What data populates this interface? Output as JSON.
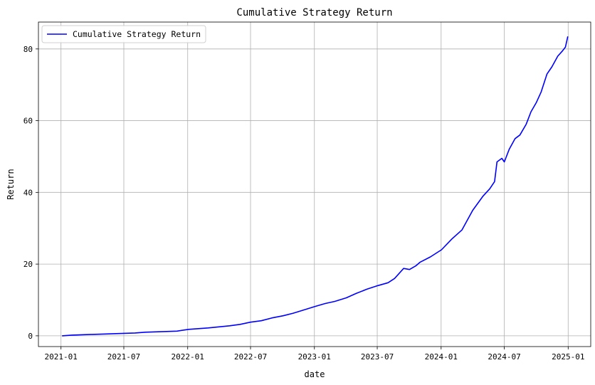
{
  "chart_data": {
    "type": "line",
    "title": "Cumulative Strategy Return",
    "xlabel": "date",
    "ylabel": "Return",
    "x_ticks": [
      "2021-01",
      "2021-07",
      "2022-01",
      "2022-07",
      "2023-01",
      "2023-07",
      "2024-01",
      "2024-07",
      "2025-01"
    ],
    "y_ticks": [
      0,
      20,
      40,
      60,
      80
    ],
    "xlim": [
      "2020-10-28",
      "2025-03-07"
    ],
    "ylim": [
      -3,
      87.5
    ],
    "grid": true,
    "legend_position": "top-left",
    "colors": {
      "line": "#0000ff",
      "grid": "#b0b0b0"
    },
    "series": [
      {
        "name": "Cumulative Strategy Return",
        "x": [
          "2021-01-04",
          "2021-02-01",
          "2021-03-01",
          "2021-04-01",
          "2021-05-03",
          "2021-06-01",
          "2021-07-01",
          "2021-08-02",
          "2021-09-01",
          "2021-10-01",
          "2021-11-01",
          "2021-12-01",
          "2022-01-04",
          "2022-02-01",
          "2022-03-01",
          "2022-04-01",
          "2022-05-02",
          "2022-06-01",
          "2022-07-01",
          "2022-08-01",
          "2022-09-01",
          "2022-10-03",
          "2022-11-01",
          "2022-12-01",
          "2023-01-03",
          "2023-02-01",
          "2023-03-01",
          "2023-04-03",
          "2023-05-01",
          "2023-06-01",
          "2023-07-03",
          "2023-08-01",
          "2023-08-20",
          "2023-09-15",
          "2023-10-02",
          "2023-10-20",
          "2023-11-01",
          "2023-12-01",
          "2024-01-02",
          "2024-02-01",
          "2024-03-01",
          "2024-04-01",
          "2024-05-01",
          "2024-05-20",
          "2024-06-03",
          "2024-06-10",
          "2024-06-24",
          "2024-07-01",
          "2024-07-15",
          "2024-08-01",
          "2024-08-15",
          "2024-09-02",
          "2024-09-16",
          "2024-10-01",
          "2024-10-15",
          "2024-11-01",
          "2024-11-15",
          "2024-12-02",
          "2024-12-16",
          "2024-12-24",
          "2024-12-31"
        ],
        "values": [
          0.0,
          0.2,
          0.3,
          0.4,
          0.5,
          0.6,
          0.7,
          0.8,
          1.0,
          1.1,
          1.2,
          1.3,
          1.8,
          2.0,
          2.2,
          2.5,
          2.8,
          3.2,
          3.8,
          4.2,
          5.0,
          5.6,
          6.3,
          7.2,
          8.2,
          9.0,
          9.6,
          10.6,
          11.8,
          13.0,
          14.0,
          14.8,
          16.0,
          18.8,
          18.5,
          19.5,
          20.5,
          22.0,
          24.0,
          27.0,
          29.5,
          35.0,
          39.0,
          41.0,
          43.0,
          48.5,
          49.5,
          48.5,
          52.0,
          55.0,
          56.0,
          59.0,
          62.5,
          65.0,
          68.0,
          73.0,
          75.0,
          78.0,
          79.5,
          80.5,
          83.5
        ]
      }
    ]
  }
}
